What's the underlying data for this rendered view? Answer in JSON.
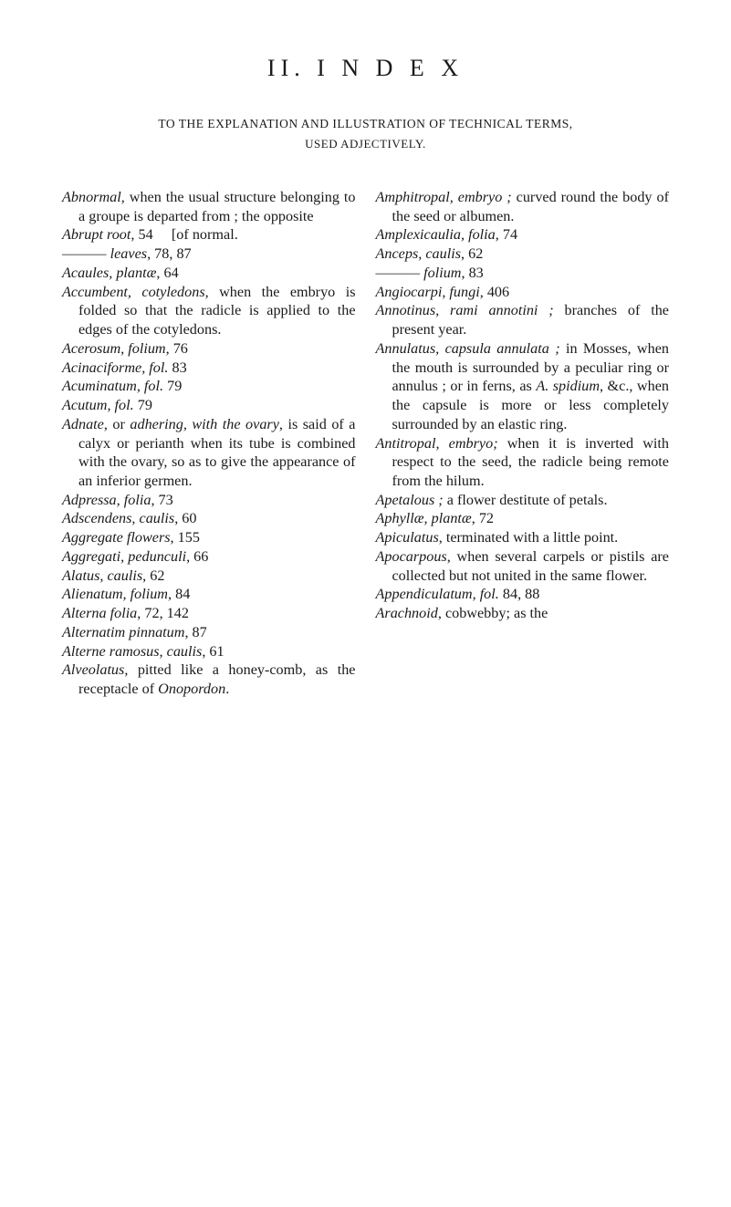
{
  "heading": "II.  I N D E X",
  "subheading1": "TO THE EXPLANATION AND ILLUSTRATION OF TECHNICAL TERMS,",
  "subheading2": "USED ADJECTIVELY.",
  "left_raw": "<p class='entry'><em>Abnormal</em>, when the usual structure belonging to a groupe is departed from ; the opposite</p><p class='entry'><em>Abrupt root</em>, 54&nbsp;&nbsp;&nbsp;&nbsp;&nbsp;[of normal.</p><p class='entry'>——— <em>leaves</em>, 78, 87</p><p class='entry'><em>Acaules, plantæ</em>, 64</p><p class='entry'><em>Accumbent, cotyledons</em>, when the embryo is folded so that the radicle is applied to the edges of the cotyledons.</p><p class='entry'><em>Acerosum, folium</em>, 76</p><p class='entry'><em>Acinaciforme, fol.</em> 83</p><p class='entry'><em>Acuminatum, fol.</em> 79</p><p class='entry'><em>Acutum, fol.</em> 79</p><p class='entry'><em>Adnate</em>, or <em>adhering, with the ovary</em>, is said of a calyx or perianth when its tube is combined with the ovary, so as to give the appearance of an inferior germen.</p><p class='entry'><em>Adpressa, folia</em>, 73</p><p class='entry'><em>Adscendens, caulis</em>, 60</p><p class='entry'><em>Aggregate flowers</em>, 155</p><p class='entry'><em>Aggregati, pedunculi</em>, 66</p><p class='entry'><em>Alatus, caulis</em>, 62</p><p class='entry'><em>Alienatum, folium</em>, 84</p><p class='entry'><em>Alterna folia</em>, 72, 142</p><p class='entry'><em>Alternatim pinnatum</em>, 87</p><p class='entry'><em>Alterne ramosus, caulis</em>, 61</p><p class='entry'><em>Alveolatus</em>, pitted like a honey-comb, as the receptacle of <em>Onopordon</em>.</p>",
  "right_raw": "<p class='entry'><em>Amphitropal, embryo ;</em> curved round the body of the seed or albumen.</p><p class='entry'><em>Amplexicaulia, folia</em>, 74</p><p class='entry'><em>Anceps, caulis</em>, 62</p><p class='entry'>——— <em>folium</em>, 83</p><p class='entry'><em>Angiocarpi, fungi</em>, 406</p><p class='entry'><em>Annotinus, rami annotini ;</em> branches of the present year.</p><p class='entry'><em>Annulatus, capsula annulata ;</em> in Mosses, when the mouth is surrounded by a peculiar ring or annulus ; or in ferns, as <em>A. spidium</em>, &amp;c., when the capsule is more or less completely surrounded by an elastic ring.</p><p class='entry'><em>Antitropal, embryo;</em> when it is inverted with respect to the seed, the radicle being remote from the hilum.</p><p class='entry'><em>Apetalous ;</em> a flower destitute of petals.</p><p class='entry'><em>Aphyllæ, plantæ</em>, 72</p><p class='entry'><em>Apiculatus</em>, terminated with a little point.</p><p class='entry'><em>Apocarpous</em>, when several carpels or pistils are collected but not united in the same flower.</p><p class='entry'><em>Appendiculatum, fol.</em> 84, 88</p><p class='entry'><em>Arachnoid</em>, cobwebby; as the</p>"
}
